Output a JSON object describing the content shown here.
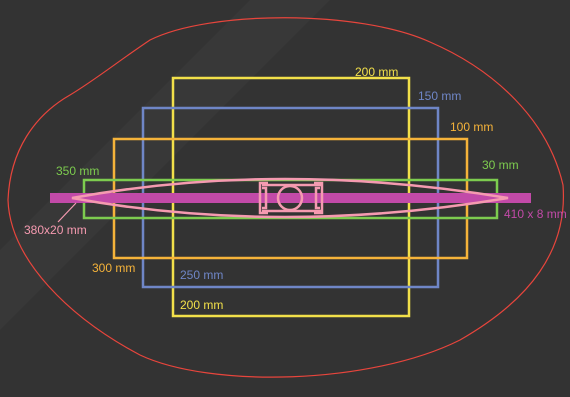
{
  "colors": {
    "background": "#333333",
    "diagonal_band": "#383838",
    "outline": "#e8453c",
    "yellow": "#f2e04a",
    "blue": "#6f86c7",
    "orange": "#f5b33a",
    "green": "#7dcc4f",
    "pink": "#f59ab0",
    "magenta": "#c24aa8"
  },
  "labels": {
    "yellow_top": "200 mm",
    "yellow_bottom": "200 mm",
    "blue_right": "150 mm",
    "blue_bottom": "250 mm",
    "orange_right": "100 mm",
    "orange_left": "300 mm",
    "green_left": "350 mm",
    "green_right": "30 mm",
    "magenta_bar": "410 x 8 mm",
    "pink_profile": "380x20 mm"
  }
}
